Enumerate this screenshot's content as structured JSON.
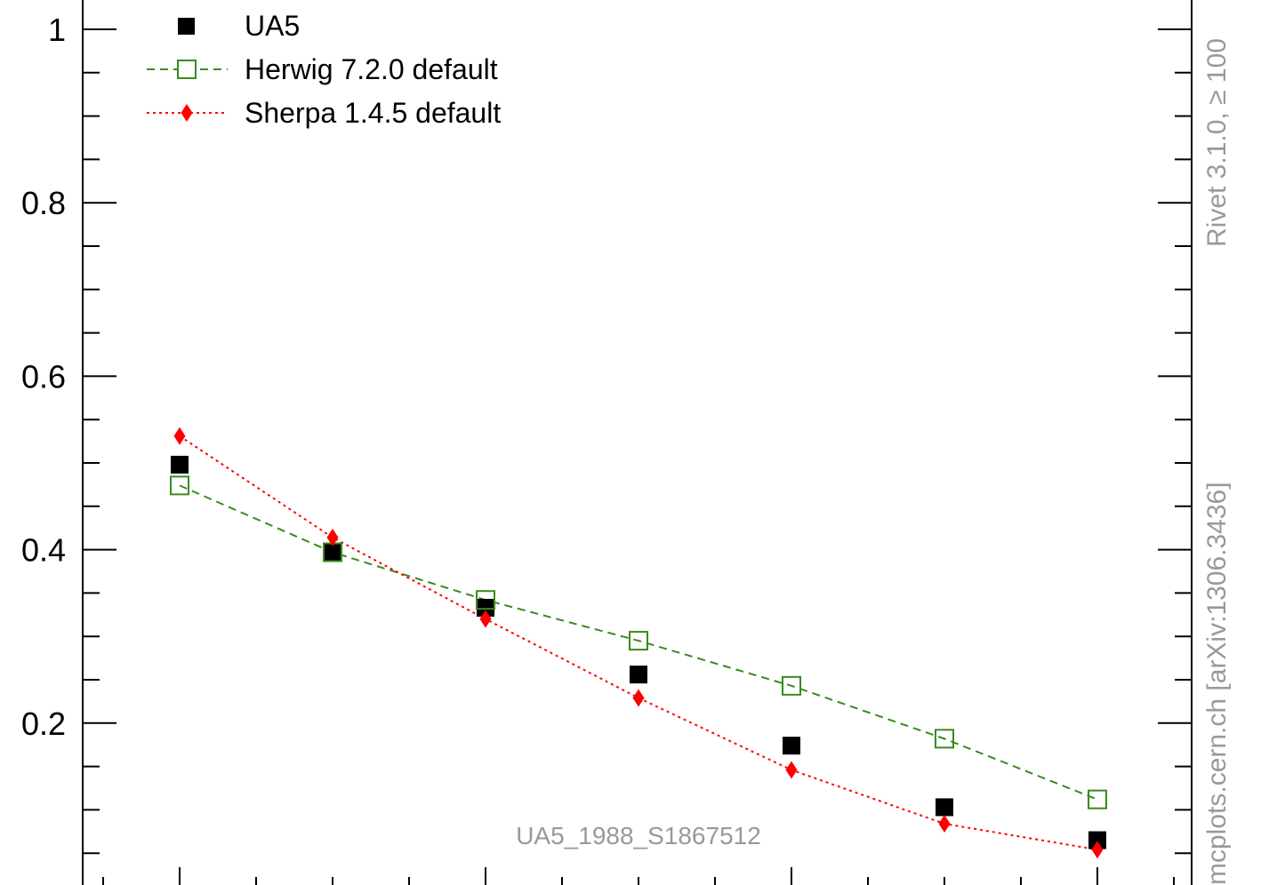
{
  "chart_data": {
    "type": "scatter",
    "analysis_id": "UA5_1988_S1867512",
    "side_text_top": "Rivet 3.1.0, ≥ 100",
    "side_text_bottom": "mcplots.cern.ch [arXiv:1306.3436]",
    "x": [
      1,
      2,
      3,
      4,
      5,
      6,
      7
    ],
    "ylim": [
      0,
      1.0
    ],
    "y_ticks": [
      0.2,
      0.4,
      0.6,
      0.8,
      1.0
    ],
    "y_tick_labels": [
      "0.2",
      "0.4",
      "0.6",
      "0.8",
      "1"
    ],
    "grid": false,
    "legend_position": "top-left",
    "series": [
      {
        "name": "UA5",
        "marker": "filled-square",
        "line": "none",
        "color": "#000000",
        "values": [
          0.498,
          0.397,
          0.333,
          0.256,
          0.174,
          0.103,
          0.065
        ]
      },
      {
        "name": "Herwig 7.2.0 default",
        "marker": "open-square",
        "line": "dashed",
        "color": "#3a8a1e",
        "values": [
          0.474,
          0.397,
          0.342,
          0.295,
          0.243,
          0.182,
          0.112
        ]
      },
      {
        "name": "Sherpa 1.4.5 default",
        "marker": "diamond",
        "line": "dotted",
        "color": "#ff0000",
        "values": [
          0.531,
          0.414,
          0.32,
          0.229,
          0.146,
          0.084,
          0.054
        ]
      }
    ]
  }
}
